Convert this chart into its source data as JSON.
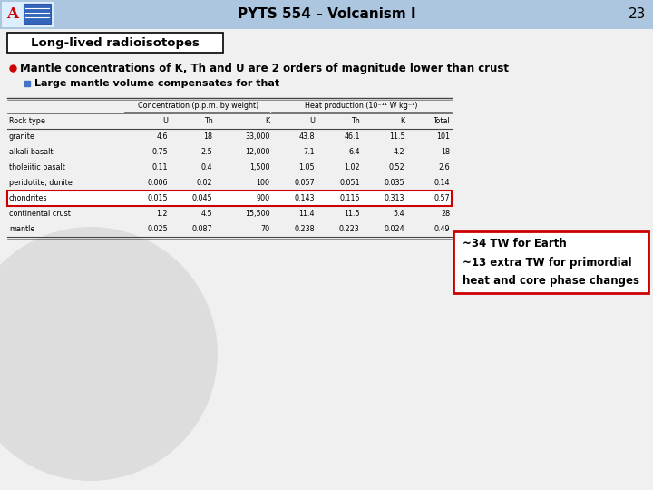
{
  "title": "PYTS 554 – Volcanism I",
  "slide_number": "23",
  "header_bg": "#adc6e0",
  "slide_bg": "#f0f0f0",
  "title_fontsize": 11,
  "subtitle_box_text": "Long-lived radioisotopes",
  "subtitle_box_bg": "#ffffff",
  "subtitle_box_border": "#000000",
  "bullet1": "Mantle concentrations of K, Th and U are 2 orders of magnitude lower than crust",
  "bullet2": "Large mantle volume compensates for that",
  "bullet1_color": "#cc0000",
  "bullet2_color": "#4472c4",
  "col_headers": [
    "Rock type",
    "U",
    "Th",
    "K",
    "U",
    "Th",
    "K",
    "Total"
  ],
  "rows": [
    [
      "granite",
      "4.6",
      "18",
      "33,000",
      "43.8",
      "46.1",
      "11.5",
      "101"
    ],
    [
      "alkali basalt",
      "0.75",
      "2.5",
      "12,000",
      "7.1",
      "6.4",
      "4.2",
      "18"
    ],
    [
      "tholeiitic basalt",
      "0.11",
      "0.4",
      "1,500",
      "1.05",
      "1.02",
      "0.52",
      "2.6"
    ],
    [
      "peridotite, dunite",
      "0.006",
      "0.02",
      "100",
      "0.057",
      "0.051",
      "0.035",
      "0.14"
    ],
    [
      "chondrites",
      "0.015",
      "0.045",
      "900",
      "0.143",
      "0.115",
      "0.313",
      "0.57"
    ],
    [
      "continental crust",
      "1.2",
      "4.5",
      "15,500",
      "11.4",
      "11.5",
      "5.4",
      "28"
    ],
    [
      "mantle",
      "0.025",
      "0.087",
      "70",
      "0.238",
      "0.223",
      "0.024",
      "0.49"
    ]
  ],
  "chondrites_row_index": 4,
  "annotation_text": "~34 TW for Earth\n~13 extra TW for primordial\nheat and core phase changes",
  "annotation_border": "#cc0000",
  "annotation_bg": "#ffffff",
  "conc_header": "Concentration (p.p.m. by weight)",
  "heat_header": "Heat production (10⁻¹¹ W kg⁻¹)"
}
